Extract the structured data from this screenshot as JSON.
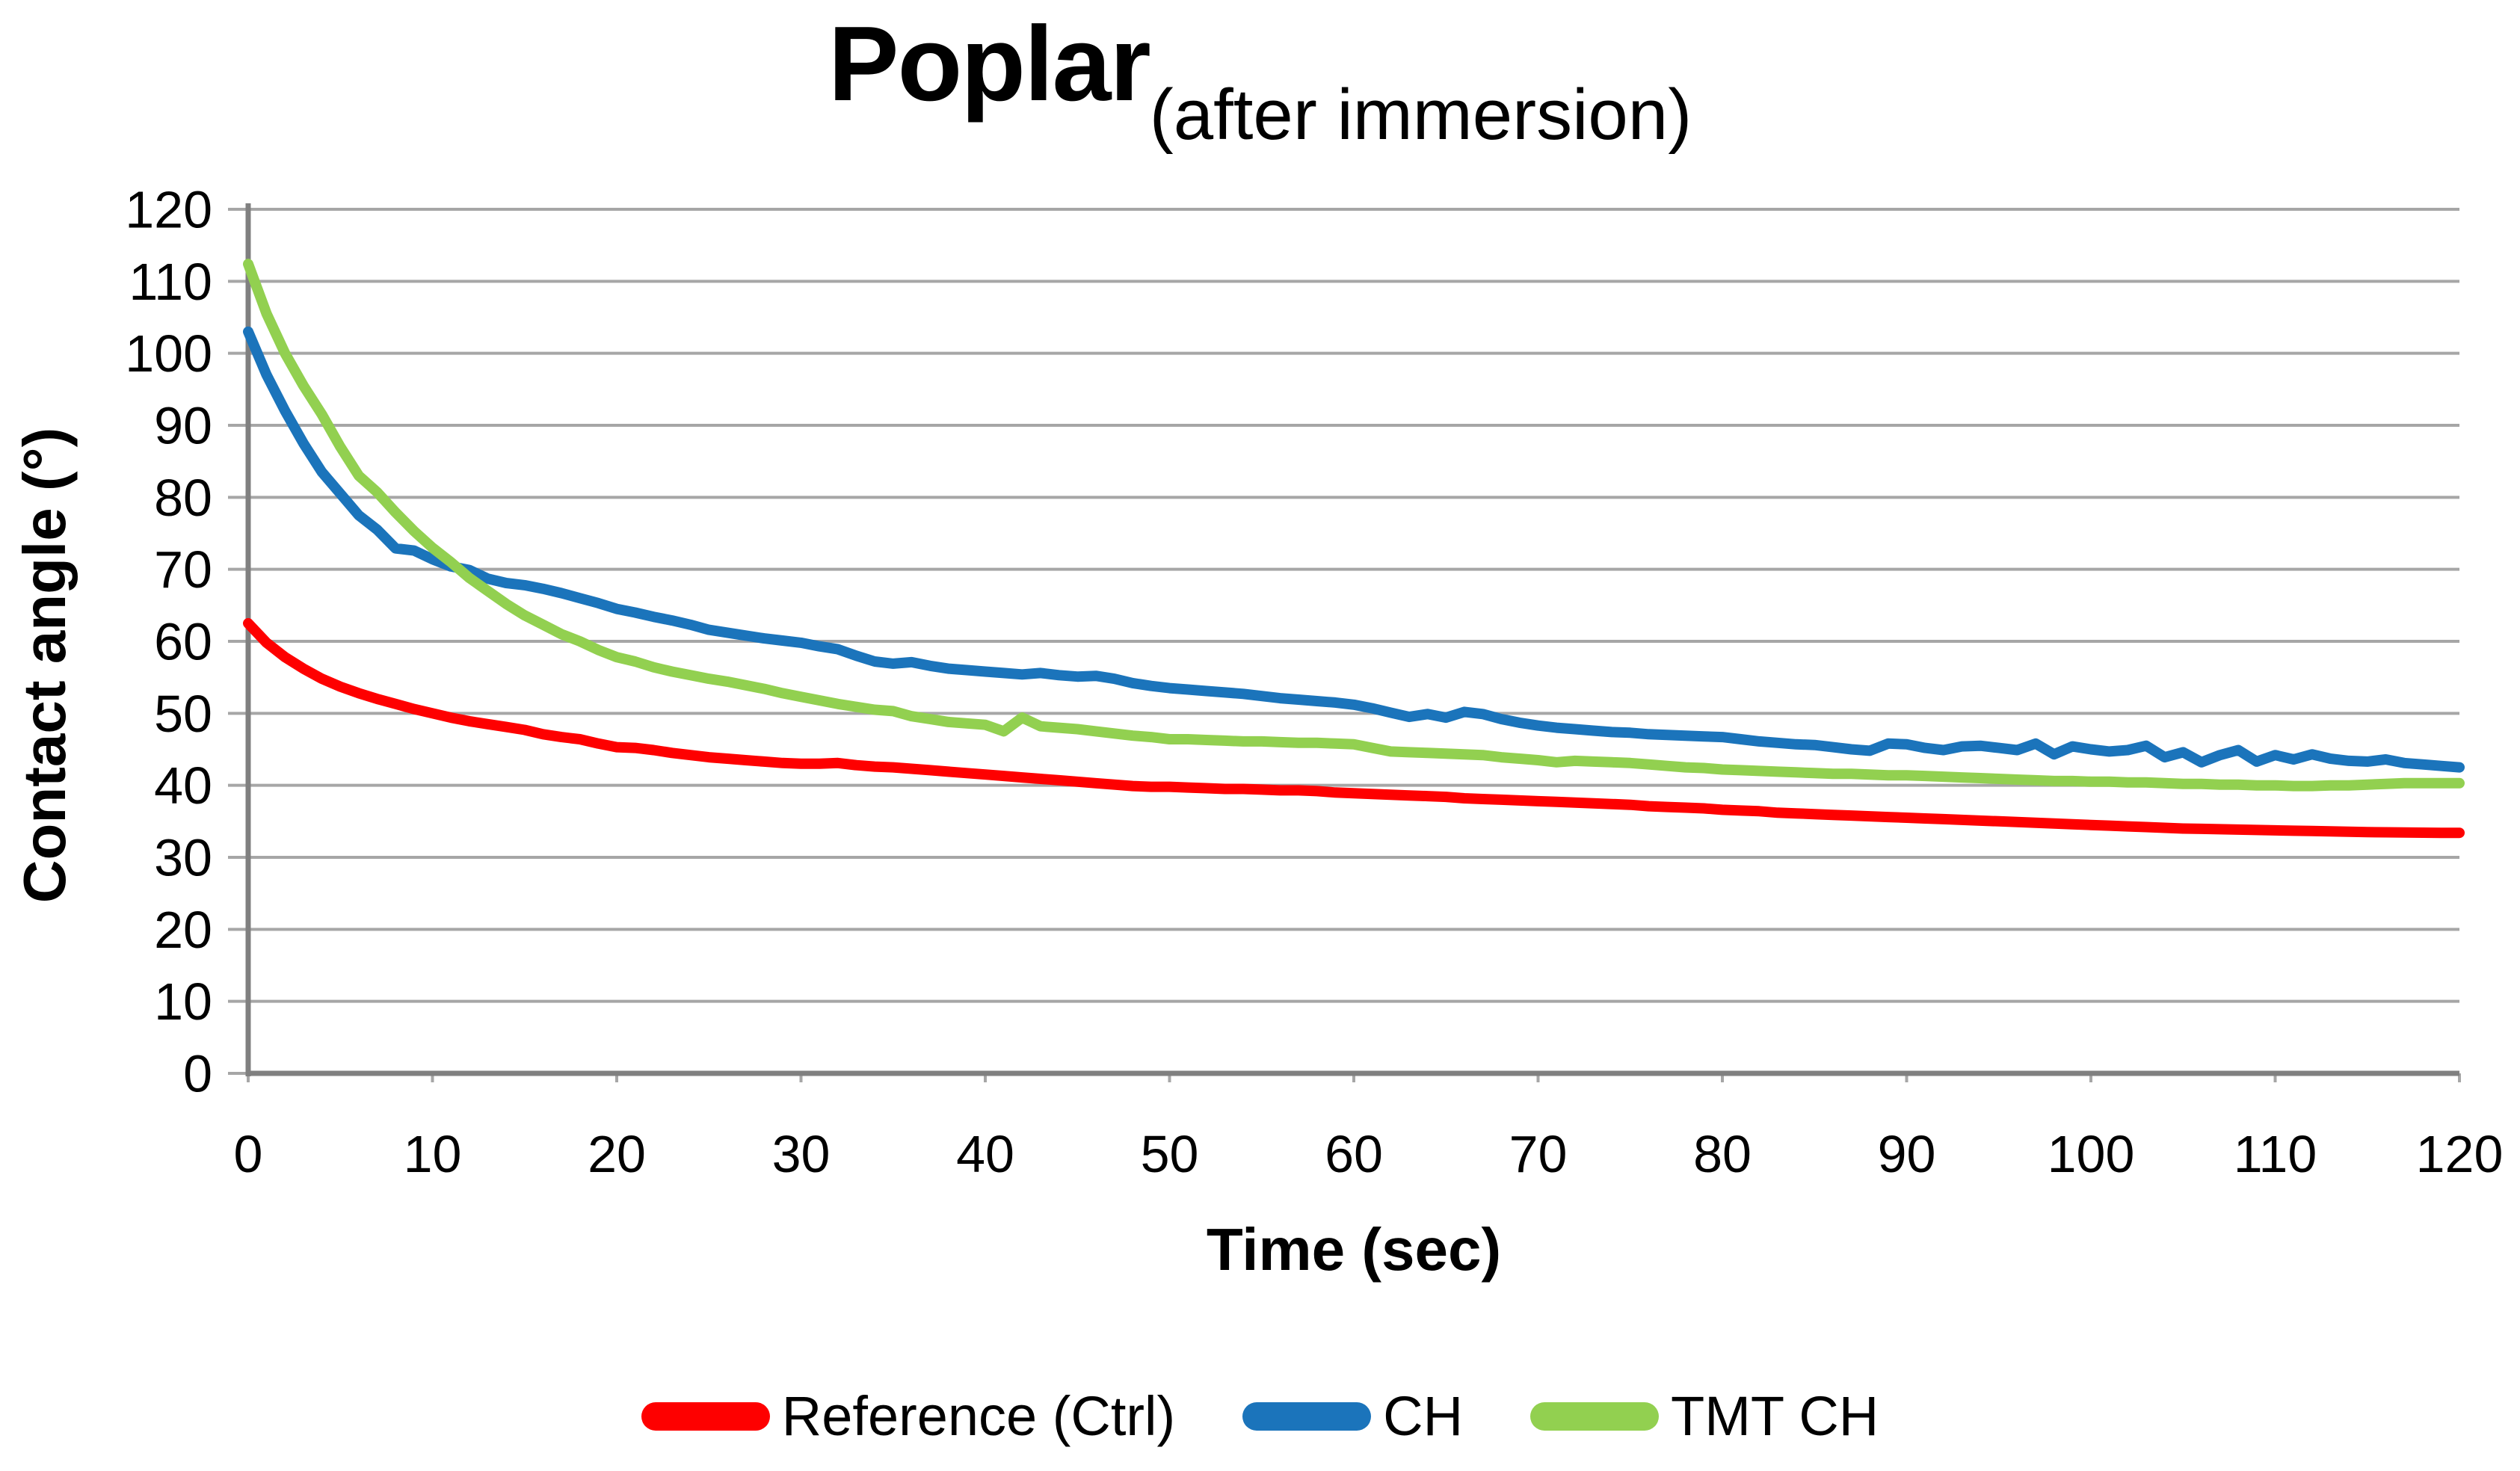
{
  "title": {
    "main": "Poplar",
    "subscript": "(after immersion)"
  },
  "axes": {
    "y_title": "Contact angle (°)",
    "x_title": "Time (sec)"
  },
  "legend": [
    {
      "label": "Reference (Ctrl)",
      "color": "#fe0000"
    },
    {
      "label": "CH",
      "color": "#1b74bb"
    },
    {
      "label": "TMT CH",
      "color": "#92d050"
    }
  ],
  "colors": {
    "gridline": "#a6a6a6",
    "axis": "#808080",
    "tick": "#a6a6a6",
    "text": "#000000",
    "background": "#ffffff"
  },
  "chart_data": {
    "type": "line",
    "title": "Poplar (after immersion)",
    "xlabel": "Time (sec)",
    "ylabel": "Contact angle (°)",
    "xlim": [
      0,
      120
    ],
    "ylim": [
      0,
      120
    ],
    "xticks": [
      0,
      10,
      20,
      30,
      40,
      50,
      60,
      70,
      80,
      90,
      100,
      110,
      120
    ],
    "yticks": [
      0,
      10,
      20,
      30,
      40,
      50,
      60,
      70,
      80,
      90,
      100,
      110,
      120
    ],
    "grid": true,
    "legend_position": "bottom",
    "x_start": 0,
    "x_step": 1,
    "series": [
      {
        "name": "Reference (Ctrl)",
        "color": "#fe0000",
        "values": [
          62.5,
          59.8,
          57.8,
          56.2,
          54.8,
          53.7,
          52.8,
          52.0,
          51.3,
          50.6,
          50.0,
          49.4,
          48.9,
          48.5,
          48.1,
          47.7,
          47.1,
          46.7,
          46.4,
          45.8,
          45.3,
          45.2,
          44.9,
          44.5,
          44.2,
          43.9,
          43.7,
          43.5,
          43.3,
          43.1,
          43.0,
          43.0,
          43.1,
          42.8,
          42.6,
          42.5,
          42.3,
          42.1,
          41.9,
          41.7,
          41.5,
          41.3,
          41.1,
          40.9,
          40.7,
          40.5,
          40.3,
          40.1,
          39.9,
          39.8,
          39.8,
          39.7,
          39.6,
          39.5,
          39.5,
          39.4,
          39.3,
          39.3,
          39.2,
          39.0,
          38.9,
          38.8,
          38.7,
          38.6,
          38.5,
          38.4,
          38.2,
          38.1,
          38.0,
          37.9,
          37.8,
          37.7,
          37.6,
          37.5,
          37.4,
          37.3,
          37.1,
          37.0,
          36.9,
          36.8,
          36.6,
          36.5,
          36.4,
          36.2,
          36.1,
          36.0,
          35.9,
          35.8,
          35.7,
          35.6,
          35.5,
          35.4,
          35.3,
          35.2,
          35.1,
          35.0,
          34.9,
          34.8,
          34.7,
          34.6,
          34.5,
          34.4,
          34.3,
          34.2,
          34.1,
          34.0,
          33.95,
          33.9,
          33.85,
          33.8,
          33.75,
          33.7,
          33.65,
          33.6,
          33.55,
          33.5,
          33.48,
          33.45,
          33.43,
          33.4,
          33.4
        ]
      },
      {
        "name": "CH",
        "color": "#1b74bb",
        "values": [
          103.0,
          97.0,
          92.0,
          87.5,
          83.5,
          80.5,
          77.5,
          75.5,
          72.9,
          72.6,
          71.4,
          70.4,
          69.9,
          68.7,
          68.1,
          67.8,
          67.3,
          66.7,
          66.0,
          65.3,
          64.5,
          64.0,
          63.4,
          62.9,
          62.3,
          61.6,
          61.2,
          60.8,
          60.4,
          60.1,
          59.8,
          59.3,
          58.9,
          58.0,
          57.2,
          56.9,
          57.1,
          56.6,
          56.2,
          56.0,
          55.8,
          55.6,
          55.4,
          55.6,
          55.3,
          55.1,
          55.2,
          54.8,
          54.2,
          53.8,
          53.5,
          53.3,
          53.1,
          52.9,
          52.7,
          52.4,
          52.1,
          51.9,
          51.7,
          51.5,
          51.2,
          50.7,
          50.1,
          49.5,
          49.9,
          49.4,
          50.2,
          49.9,
          49.2,
          48.7,
          48.3,
          48.0,
          47.8,
          47.6,
          47.4,
          47.3,
          47.1,
          47.0,
          46.9,
          46.8,
          46.7,
          46.4,
          46.1,
          45.9,
          45.7,
          45.6,
          45.3,
          45.0,
          44.8,
          45.8,
          45.7,
          45.2,
          44.9,
          45.4,
          45.5,
          45.2,
          44.9,
          45.8,
          44.3,
          45.4,
          45.0,
          44.7,
          44.9,
          45.5,
          43.9,
          44.6,
          43.2,
          44.2,
          44.9,
          43.3,
          44.2,
          43.6,
          44.3,
          43.7,
          43.4,
          43.3,
          43.6,
          43.1,
          42.9,
          42.7,
          42.5
        ]
      },
      {
        "name": "TMT CH",
        "color": "#92d050",
        "values": [
          112.4,
          105.5,
          100.0,
          95.5,
          91.5,
          87.0,
          83.0,
          80.7,
          77.9,
          75.3,
          73.0,
          71.0,
          68.8,
          67.0,
          65.2,
          63.6,
          62.3,
          61.0,
          60.0,
          58.8,
          57.8,
          57.2,
          56.4,
          55.8,
          55.3,
          54.8,
          54.4,
          53.9,
          53.4,
          52.8,
          52.3,
          51.8,
          51.3,
          50.9,
          50.5,
          50.3,
          49.6,
          49.2,
          48.8,
          48.6,
          48.4,
          47.5,
          49.4,
          48.2,
          48.0,
          47.8,
          47.5,
          47.2,
          46.9,
          46.7,
          46.4,
          46.4,
          46.3,
          46.2,
          46.1,
          46.1,
          46.0,
          45.9,
          45.9,
          45.8,
          45.7,
          45.2,
          44.7,
          44.6,
          44.5,
          44.4,
          44.3,
          44.2,
          43.9,
          43.7,
          43.5,
          43.2,
          43.4,
          43.3,
          43.2,
          43.1,
          42.9,
          42.7,
          42.5,
          42.4,
          42.2,
          42.1,
          42.0,
          41.9,
          41.8,
          41.7,
          41.6,
          41.6,
          41.5,
          41.4,
          41.4,
          41.3,
          41.2,
          41.1,
          41.0,
          40.9,
          40.8,
          40.7,
          40.6,
          40.6,
          40.5,
          40.5,
          40.4,
          40.4,
          40.3,
          40.2,
          40.2,
          40.1,
          40.1,
          40.0,
          40.0,
          39.9,
          39.9,
          40.0,
          40.0,
          40.1,
          40.2,
          40.3,
          40.3,
          40.3,
          40.3
        ]
      }
    ]
  }
}
